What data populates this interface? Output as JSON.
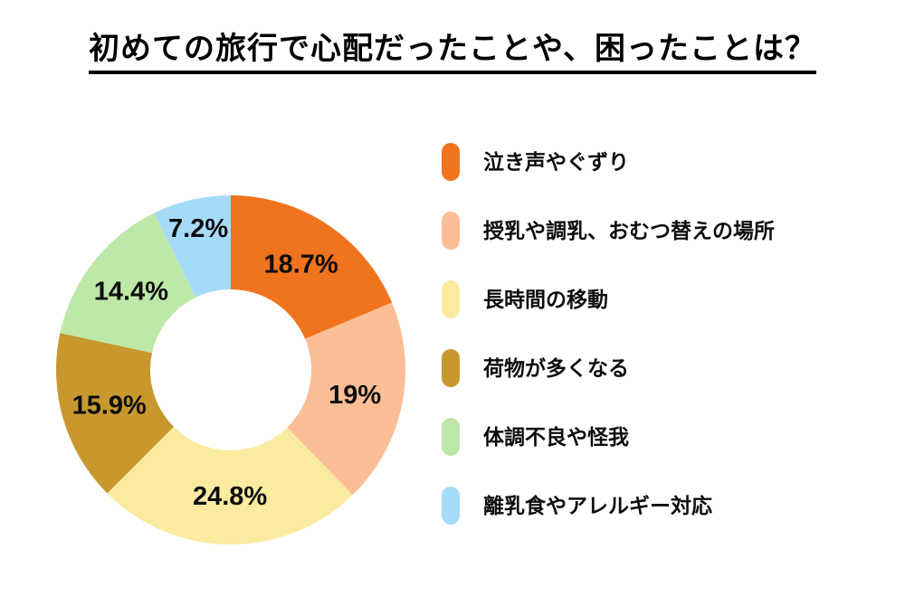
{
  "title": "初めての旅行で心配だったことや、困ったことは？",
  "colors": {
    "background": "#ffffff",
    "text": "#0d0d0d",
    "title_underline": "#000000"
  },
  "chart_data": {
    "type": "pie",
    "subtype": "donut",
    "title": "初めての旅行で心配だったことや、困ったことは？",
    "categories": [
      "泣き声やぐずり",
      "授乳や調乳、おむつ替えの場所",
      "長時間の移動",
      "荷物が多くなる",
      "体調不良や怪我",
      "離乳食やアレルギー対応"
    ],
    "values": [
      18.7,
      19,
      24.8,
      15.9,
      14.4,
      7.2
    ],
    "labels": [
      "18.7%",
      "19%",
      "24.8%",
      "15.9%",
      "14.4%",
      "7.2%"
    ],
    "colors": [
      "#F0731E",
      "#FBBE97",
      "#FAEBA0",
      "#C8982E",
      "#BDE8A8",
      "#A5DBF8"
    ],
    "start_angle": "top",
    "direction": "clockwise",
    "inner_radius_ratio": 0.46,
    "legend_position": "right",
    "label_radii": [
      140,
      140,
      140,
      140,
      140,
      160
    ]
  }
}
